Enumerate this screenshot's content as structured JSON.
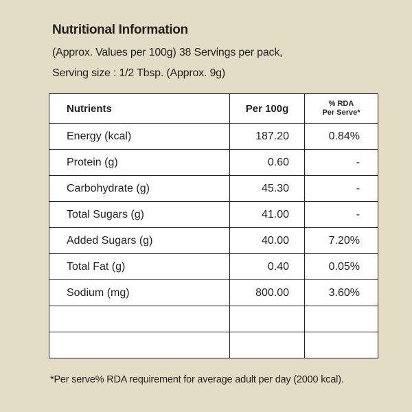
{
  "title": "Nutritional Information",
  "subtitle_line1": "(Approx. Values per 100g) 38 Servings per pack,",
  "subtitle_line2": "Serving size : 1/2  Tbsp. (Approx. 9g)",
  "table": {
    "headers": {
      "nutrients": "Nutrients",
      "per100g": "Per 100g",
      "rda_line1": "% RDA",
      "rda_line2": "Per Serve*"
    },
    "rows": [
      {
        "nutrient": "Energy (kcal)",
        "per100g": "187.20",
        "rda": "0.84%"
      },
      {
        "nutrient": "Protein (g)",
        "per100g": "0.60",
        "rda": "-"
      },
      {
        "nutrient": "Carbohydrate (g)",
        "per100g": "45.30",
        "rda": "-"
      },
      {
        "nutrient": "Total Sugars (g)",
        "per100g": "41.00",
        "rda": "-"
      },
      {
        "nutrient": "Added Sugars (g)",
        "per100g": "40.00",
        "rda": "7.20%"
      },
      {
        "nutrient": "Total Fat (g)",
        "per100g": "0.40",
        "rda": "0.05%"
      },
      {
        "nutrient": "Sodium (mg)",
        "per100g": "800.00",
        "rda": "3.60%"
      },
      {
        "nutrient": "",
        "per100g": "",
        "rda": ""
      },
      {
        "nutrient": "",
        "per100g": "",
        "rda": ""
      }
    ]
  },
  "footnote": "*Per serve% RDA requirement for average adult per day (2000 kcal).",
  "colors": {
    "background": "#e3ddc6",
    "table_background": "#ffffff",
    "text": "#231f20"
  }
}
